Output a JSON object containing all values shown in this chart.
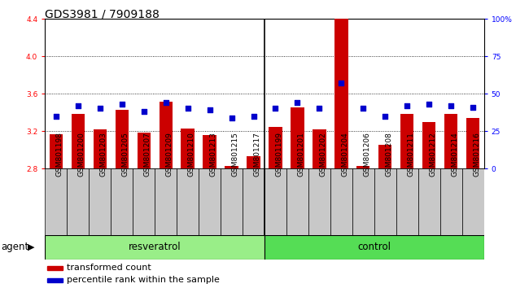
{
  "title": "GDS3981 / 7909188",
  "samples": [
    "GSM801198",
    "GSM801200",
    "GSM801203",
    "GSM801205",
    "GSM801207",
    "GSM801209",
    "GSM801210",
    "GSM801213",
    "GSM801215",
    "GSM801217",
    "GSM801199",
    "GSM801201",
    "GSM801202",
    "GSM801204",
    "GSM801206",
    "GSM801208",
    "GSM801211",
    "GSM801212",
    "GSM801214",
    "GSM801216"
  ],
  "bar_values": [
    3.17,
    3.38,
    3.22,
    3.43,
    3.18,
    3.51,
    3.23,
    3.16,
    2.83,
    2.93,
    3.24,
    3.45,
    3.22,
    4.4,
    2.83,
    3.05,
    3.38,
    3.3,
    3.38,
    3.34
  ],
  "percentile_values": [
    35,
    42,
    40,
    43,
    38,
    44,
    40,
    39,
    34,
    35,
    40,
    44,
    40,
    57,
    40,
    35,
    42,
    43,
    42,
    41
  ],
  "resveratrol_count": 10,
  "control_count": 10,
  "ylim_left": [
    2.8,
    4.4
  ],
  "ylim_right": [
    0,
    100
  ],
  "yticks_left": [
    2.8,
    3.2,
    3.6,
    4.0,
    4.4
  ],
  "yticks_right": [
    0,
    25,
    50,
    75,
    100
  ],
  "ytick_labels_right": [
    "0",
    "25",
    "50",
    "75",
    "100%"
  ],
  "bar_color": "#cc0000",
  "dot_color": "#0000cc",
  "resveratrol_color": "#99ee88",
  "control_color": "#55dd55",
  "agent_label": "agent",
  "resveratrol_label": "resveratrol",
  "control_label": "control",
  "legend_bar_label": "transformed count",
  "legend_dot_label": "percentile rank within the sample",
  "tickbox_color": "#c8c8c8",
  "plot_bg_color": "#ffffff",
  "title_fontsize": 10,
  "tick_fontsize": 6.5,
  "label_fontsize": 8.5,
  "legend_fontsize": 8
}
